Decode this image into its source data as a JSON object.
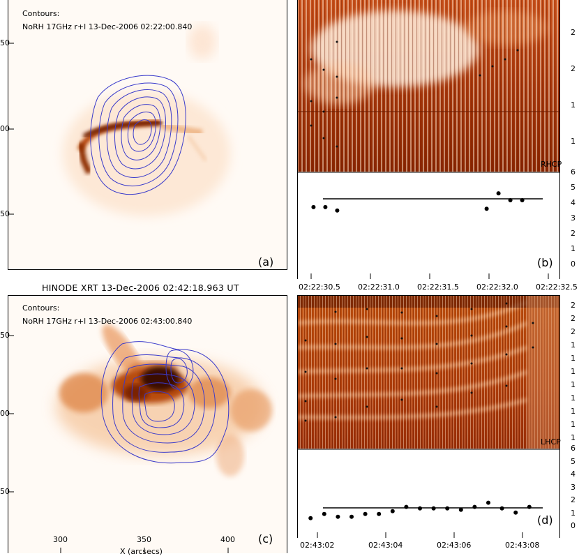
{
  "panels": {
    "a": {
      "tag": "(a)",
      "contours_label": "Contours:",
      "contours_desc": "NoRH 17GHz r+l 13-Dec-2006 02:22:00.840",
      "y_ticks": [
        "50",
        "00",
        "50"
      ]
    },
    "c": {
      "title": "HINODE XRT 13-Dec-2006 02:42:18.963 UT",
      "tag": "(c)",
      "contours_label": "Contours:",
      "contours_desc": "NoRH 17GHz r+l 13-Dec-2006 02:43:00.840",
      "y_ticks": [
        "50",
        "00",
        "50"
      ],
      "x_ticks": [
        "300",
        "350",
        "400"
      ],
      "x_label": "X (arcsecs)"
    },
    "b": {
      "tag": "(b)",
      "polarization": "RHCP",
      "x_ticks": [
        "02:22:30.5",
        "02:22:31.0",
        "02:22:31.5",
        "02:22:32.0",
        "02:22:32.5"
      ],
      "right_ticks_top": [
        "2",
        "2",
        "1",
        "1"
      ],
      "right_ticks_bottom": [
        "6",
        "5",
        "4",
        "3",
        "2",
        "1",
        "0"
      ]
    },
    "d": {
      "tag": "(d)",
      "polarization": "LHCP",
      "x_ticks": [
        "02:43:02",
        "02:43:04",
        "02:43:06",
        "02:43:08"
      ],
      "right_ticks_top": [
        "2",
        "2",
        "2",
        "1",
        "1",
        "1",
        "1",
        "1",
        "1",
        "1",
        "1"
      ],
      "right_ticks_bottom": [
        "6",
        "5",
        "4",
        "3",
        "2",
        "1",
        "0"
      ]
    }
  },
  "colors": {
    "contour": "#3a3acb",
    "spectrum_dark": "#8a1f00",
    "spectrum_light": "#fff3e6"
  },
  "chart_data": [
    {
      "type": "scatter",
      "panel": "b",
      "x": [
        "02:22:30.52",
        "02:22:30.62",
        "02:22:30.72",
        "02:22:31.98",
        "02:22:32.08",
        "02:22:32.18",
        "02:22:32.28"
      ],
      "y": [
        4.1,
        4.1,
        3.9,
        4.0,
        4.9,
        4.5,
        4.5
      ],
      "fit_level": 4.2,
      "ylim": [
        0,
        6
      ]
    },
    {
      "type": "scatter",
      "panel": "d",
      "x": [
        "02:43:01.8",
        "02:43:02.2",
        "02:43:02.6",
        "02:43:03.0",
        "02:43:03.4",
        "02:43:03.8",
        "02:43:04.2",
        "02:43:04.6",
        "02:43:05.0",
        "02:43:05.4",
        "02:43:05.8",
        "02:43:06.2",
        "02:43:06.6",
        "02:43:07.0",
        "02:43:07.4",
        "02:43:07.8",
        "02:43:08.2"
      ],
      "y": [
        1.3,
        1.6,
        1.4,
        1.4,
        1.6,
        1.6,
        1.8,
        2.1,
        2.0,
        2.0,
        2.0,
        1.9,
        2.1,
        2.4,
        2.0,
        1.7,
        2.1
      ],
      "fit_level": 1.8,
      "ylim": [
        0,
        6
      ]
    }
  ]
}
